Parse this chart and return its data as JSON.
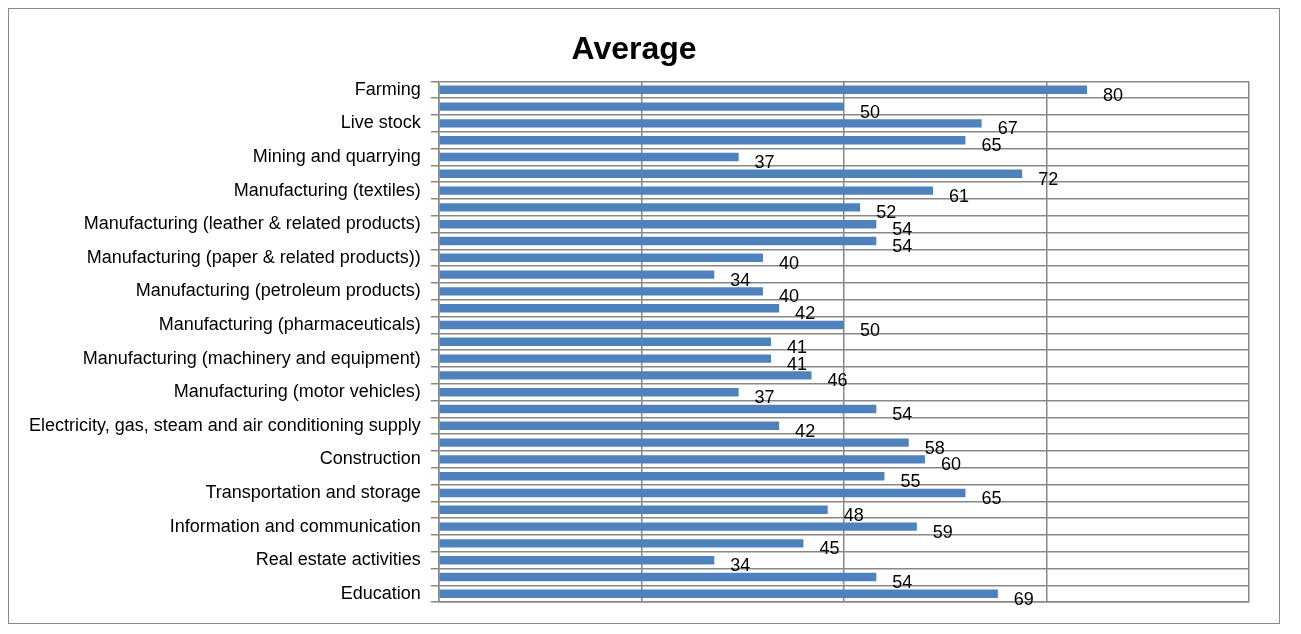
{
  "chart_data": {
    "type": "bar",
    "orientation": "horizontal",
    "title": "Average",
    "categories": [
      "Farming",
      null,
      "Live stock",
      null,
      "Mining and quarrying",
      null,
      "Manufacturing (textiles)",
      null,
      "Manufacturing (leather & related products)",
      null,
      "Manufacturing (paper & related products))",
      null,
      "Manufacturing (petroleum products)",
      null,
      "Manufacturing (pharmaceuticals)",
      null,
      "Manufacturing (machinery and equipment)",
      null,
      "Manufacturing (motor vehicles)",
      null,
      "Electricity, gas, steam and air conditioning supply",
      null,
      "Construction",
      null,
      "Transportation and storage",
      null,
      "Information and communication",
      null,
      "Real estate activities",
      null,
      "Education"
    ],
    "values": [
      80,
      50,
      67,
      65,
      37,
      72,
      61,
      52,
      54,
      54,
      40,
      34,
      40,
      42,
      50,
      41,
      41,
      46,
      37,
      54,
      42,
      58,
      60,
      55,
      65,
      48,
      59,
      45,
      34,
      54,
      69
    ],
    "color": "#4f81bd",
    "xlim": [
      0,
      100
    ],
    "xticks": [
      {
        "value": 0,
        "label": null
      },
      {
        "value": 25,
        "label": null
      },
      {
        "value": 50,
        "label": null
      },
      {
        "value": 75,
        "label": null
      },
      {
        "value": 100,
        "label": null
      }
    ],
    "tick_labels": "y",
    "grid": true,
    "data_labels": true,
    "legend": false
  }
}
